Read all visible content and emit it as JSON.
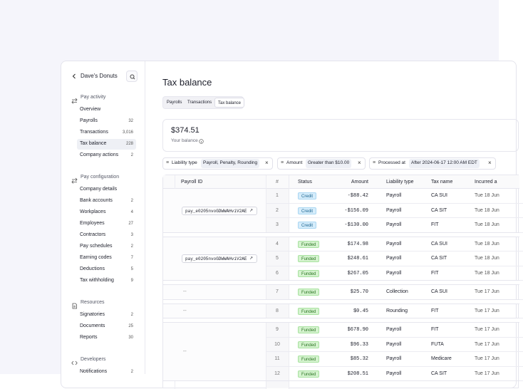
{
  "sidebar": {
    "company": "Dave's Donuts",
    "sections": [
      {
        "title": "Pay activity",
        "icon": "swap",
        "items": [
          {
            "label": "Overview"
          },
          {
            "label": "Payrolls",
            "count": "32"
          },
          {
            "label": "Transactions",
            "count": "3,016"
          },
          {
            "label": "Tax balance",
            "count": "228",
            "selected": true
          },
          {
            "label": "Company actions",
            "count": "2"
          }
        ]
      },
      {
        "title": "Pay configuration",
        "icon": "swap",
        "items": [
          {
            "label": "Company details"
          },
          {
            "label": "Bank accounts",
            "count": "2"
          },
          {
            "label": "Workplaces",
            "count": "4"
          },
          {
            "label": "Employees",
            "count": "27"
          },
          {
            "label": "Contractors",
            "count": "3"
          },
          {
            "label": "Pay schedules",
            "count": "2"
          },
          {
            "label": "Earning codes",
            "count": "7"
          },
          {
            "label": "Deductions",
            "count": "5"
          },
          {
            "label": "Tax withholding",
            "count": "9"
          }
        ]
      },
      {
        "title": "Resources",
        "icon": "doc",
        "items": [
          {
            "label": "Signatories",
            "count": "2"
          },
          {
            "label": "Documents",
            "count": "25"
          },
          {
            "label": "Reports",
            "count": "30"
          }
        ]
      },
      {
        "title": "Developers",
        "icon": "code",
        "items": [
          {
            "label": "Notifications",
            "count": "2"
          }
        ]
      }
    ]
  },
  "page": {
    "title": "Tax balance",
    "tabs": [
      {
        "label": "Payrolls"
      },
      {
        "label": "Transactions"
      },
      {
        "label": "Tax balance",
        "active": true
      }
    ],
    "balance": {
      "amount": "$374.51",
      "label": "Your balance"
    },
    "filters": [
      {
        "field": "Liability type",
        "value": "Payroll, Penalty, Rounding"
      },
      {
        "field": "Amount",
        "value": "Greater than $10.00"
      },
      {
        "field": "Processed at",
        "value": "After 2024-06-17 12:00 AM EDT"
      }
    ],
    "table": {
      "headers": [
        "Payroll ID",
        "#",
        "Status",
        "Amount",
        "Liability type",
        "Tax name",
        "Incurred a"
      ],
      "groups": [
        {
          "payroll_id": "pay_e0205nvoGDWWAHviV2AE",
          "rows": [
            [
              "1",
              "Credit",
              "-$88.42",
              "Payroll",
              "CA SUI",
              "Tue 18 Jun"
            ],
            [
              "2",
              "Credit",
              "-$156.09",
              "Payroll",
              "CA SIT",
              "Tue 18 Jun"
            ],
            [
              "3",
              "Credit",
              "-$130.00",
              "Payroll",
              "FIT",
              "Tue 18 Jun"
            ]
          ]
        },
        {
          "payroll_id": "pay_e0205nvoGDWWAHviV2AE",
          "rows": [
            [
              "4",
              "Funded",
              "$174.98",
              "Payroll",
              "CA SUI",
              "Tue 18 Jun"
            ],
            [
              "5",
              "Funded",
              "$248.61",
              "Payroll",
              "CA SIT",
              "Tue 18 Jun"
            ],
            [
              "6",
              "Funded",
              "$267.05",
              "Payroll",
              "FIT",
              "Tue 18 Jun"
            ]
          ]
        },
        {
          "payroll_id": "--",
          "rows": [
            [
              "7",
              "Funded",
              "$25.70",
              "Collection",
              "CA SUI",
              "Tue 17 Jun"
            ]
          ]
        },
        {
          "payroll_id": "--",
          "rows": [
            [
              "8",
              "Funded",
              "$0.45",
              "Rounding",
              "FIT",
              "Tue 17 Jun"
            ]
          ]
        },
        {
          "payroll_id": "--",
          "rows": [
            [
              "9",
              "Funded",
              "$678.90",
              "Payroll",
              "FIT",
              "Tue 17 Jun"
            ],
            [
              "10",
              "Funded",
              "$96.33",
              "Payroll",
              "FUTA",
              "Tue 17 Jun"
            ],
            [
              "11",
              "Funded",
              "$85.32",
              "Payroll",
              "Medicare",
              "Tue 17 Jun"
            ],
            [
              "12",
              "Funded",
              "$208.51",
              "Payroll",
              "CA SIT",
              "Tue 17 Jun"
            ]
          ]
        }
      ]
    }
  }
}
